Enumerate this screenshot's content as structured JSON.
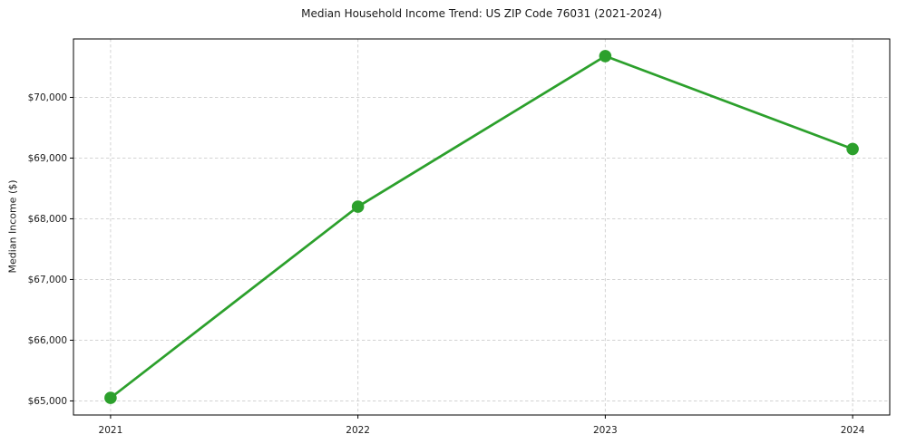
{
  "chart_data": {
    "type": "line",
    "title": "Median Household Income Trend: US ZIP Code 76031 (2021-2024)",
    "xlabel": "",
    "ylabel": "Median Income ($)",
    "x": [
      2021,
      2022,
      2023,
      2024
    ],
    "categories": [
      "2021",
      "2022",
      "2023",
      "2024"
    ],
    "series": [
      {
        "name": "Median Household Income",
        "values": [
          65050,
          68200,
          70680,
          69150
        ]
      }
    ],
    "xlim": [
      2020.85,
      2024.15
    ],
    "ylim": [
      64768,
      70962
    ],
    "yticks": [
      65000,
      66000,
      67000,
      68000,
      69000,
      70000
    ],
    "ytick_labels": [
      "$65,000",
      "$66,000",
      "$67,000",
      "$68,000",
      "$69,000",
      "$70,000"
    ],
    "grid": true,
    "grid_style": "dashed",
    "legend_position": "none",
    "line_color": "#2ca02c",
    "marker_color": "#2ca02c",
    "marker_shape": "circle",
    "marker_radius": 6.8,
    "line_width": 2.7,
    "grid_color": "#d3d3d3",
    "spine_color": "#000000",
    "text_color": "#1a1a1a",
    "background": "#ffffff"
  }
}
